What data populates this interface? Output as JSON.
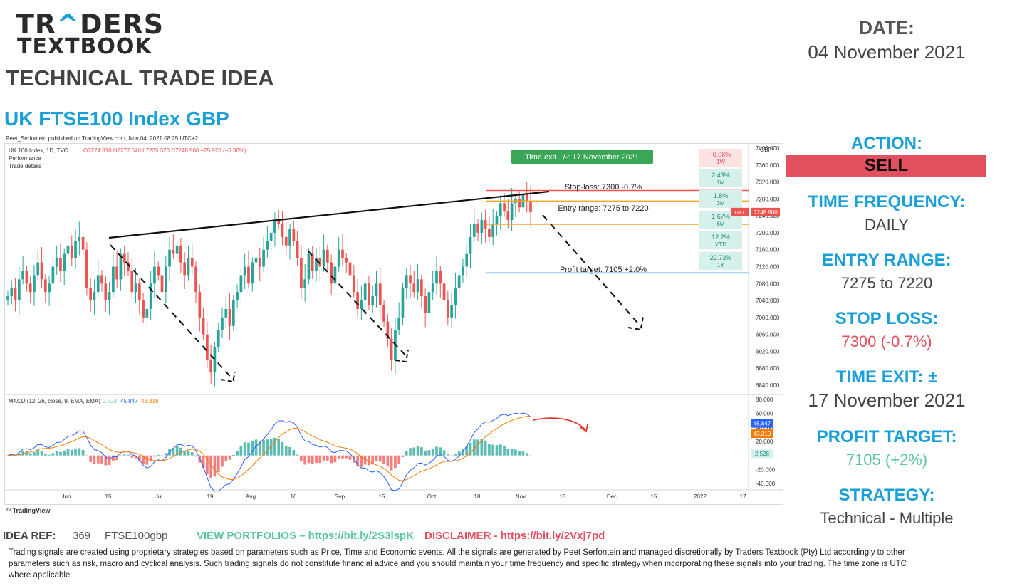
{
  "brand": {
    "logo_line1_a": "TR",
    "logo_line1_caret": "^",
    "logo_line1_b": "DERS",
    "logo_line2": "TEXTBOOK"
  },
  "header": {
    "title": "TECHNICAL TRADE IDEA",
    "chart_title": "UK FTSE100 Index GBP",
    "published": "Peet_Serfontein published on TradingView.com, Nov 04, 2021 08:25 UTC+2",
    "tradingview": "TradingView"
  },
  "side": {
    "date_label": "DATE:",
    "date_value": "04 November 2021",
    "action_label": "ACTION:",
    "action_value": "SELL",
    "freq_label": "TIME FREQUENCY:",
    "freq_value": "DAILY",
    "entry_label": "ENTRY RANGE:",
    "entry_value": "7275 to 7220",
    "stop_label": "STOP LOSS:",
    "stop_value": "7300 (-0.7%)",
    "exit_label": "TIME EXIT: ±",
    "exit_value": "17 November 2021",
    "target_label": "PROFIT TARGET:",
    "target_value": "7105 (+2%)",
    "strategy_label": "STRATEGY:",
    "strategy_value": "Technical - Multiple"
  },
  "footer": {
    "idea_ref": "IDEA REF:",
    "idea_num": "369",
    "idea_code": "FTSE100gbp",
    "portfolios": "VIEW PORTFOLIOS – https://bit.ly/2S3lspK",
    "disclaimer_link": "DISCLAIMER -  https://bit.ly/2Vxj7pd",
    "disclaimer_text": "Trading signals are created using proprietary strategies based on parameters such as Price, Time and Economic events.  All the signals are generated by Peet Serfontein and managed discretionally by Traders Textbook (Pty) Ltd accordingly to other parameters such as risk, macro and cyclical analysis. Such trading signals do not constitute financial advice and you should maintain your time frequency  and specific strategy when  incorporating these signals into your trading. The time zone  is UTC where  applicable."
  },
  "colors": {
    "accent": "#1aa0d8",
    "sell": "#e0505e",
    "up": "#26a69a",
    "down": "#ef5350",
    "target": "#5cc6a0"
  },
  "chart_data": {
    "type": "candlestick",
    "symbol_line": "UK 100 Index, 1D, TVC",
    "ohlc_line": "O7274.810 H7277.640 L7235.320 C7248.900 −25.920 (−0.36%)",
    "info_lines": [
      "Performance",
      "Trade details"
    ],
    "currency": "GBP",
    "price_ticks": [
      7400,
      7360,
      7320,
      7280,
      7240,
      7200,
      7160,
      7120,
      7080,
      7040,
      7000,
      6960,
      6920,
      6880,
      6840
    ],
    "x_ticks": [
      "Jun",
      "15",
      "Jul",
      "19",
      "Aug",
      "16",
      "Sep",
      "15",
      "Oct",
      "18",
      "Nov",
      "15",
      "Dec",
      "15",
      "2022",
      "17"
    ],
    "last_price_label": "UKX",
    "last_price": "7248.900",
    "close_series": [
      7050,
      7070,
      7040,
      7090,
      7110,
      7080,
      7060,
      7100,
      7130,
      7090,
      7060,
      7080,
      7120,
      7140,
      7110,
      7150,
      7170,
      7140,
      7180,
      7190,
      7160,
      7070,
      7040,
      7060,
      7100,
      7080,
      7040,
      7060,
      7120,
      7090,
      7150,
      7130,
      7110,
      7060,
      7080,
      7040,
      7000,
      7020,
      7080,
      7120,
      7100,
      7060,
      7120,
      7160,
      7150,
      7170,
      7130,
      7100,
      7140,
      7120,
      7060,
      7000,
      6960,
      6900,
      6870,
      6930,
      6970,
      7000,
      7020,
      6980,
      7040,
      7060,
      7100,
      7120,
      7080,
      7130,
      7140,
      7120,
      7160,
      7180,
      7200,
      7230,
      7220,
      7190,
      7170,
      7210,
      7180,
      7140,
      7070,
      7090,
      7150,
      7110,
      7140,
      7120,
      7160,
      7130,
      7080,
      7120,
      7160,
      7140,
      7130,
      7100,
      7060,
      7020,
      7040,
      7080,
      7030,
      7050,
      7080,
      7030,
      6990,
      6950,
      6900,
      6970,
      7000,
      7070,
      7100,
      7080,
      7060,
      7090,
      7050,
      7010,
      7060,
      7080,
      7110,
      7080,
      7040,
      7000,
      7030,
      7070,
      7100,
      7120,
      7150,
      7190,
      7220,
      7200,
      7230,
      7210,
      7190,
      7220,
      7240,
      7270,
      7250,
      7230,
      7270,
      7280,
      7260,
      7290,
      7274,
      7248.9
    ],
    "annotations": {
      "time_exit": "Time exit +/-: 17 November 2021",
      "stop_loss": "Stop-loss: 7300 -0.7%",
      "entry_range": "Entry range: 7275 to 7220",
      "profit_target": "Profit target: 7105 +2.0%",
      "stop_level": 7300,
      "entry_high": 7275,
      "entry_low": 7220,
      "target_level": 7105
    },
    "performance": [
      {
        "value": "-0.06%",
        "period": "1W",
        "positive": false
      },
      {
        "value": "2.43%",
        "period": "1M",
        "positive": true
      },
      {
        "value": "1.8%",
        "period": "3M",
        "positive": true
      },
      {
        "value": "1.67%",
        "period": "6M",
        "positive": true
      },
      {
        "value": "12.2%",
        "period": "YTD",
        "positive": true
      },
      {
        "value": "22.73%",
        "period": "1Y",
        "positive": true
      }
    ],
    "macd": {
      "legend_name": "MACD (12, 26, close, 9, EMA, EMA)",
      "hist_value": "2.528",
      "macd_value": "45.847",
      "signal_value": "43.319",
      "ticks": [
        80,
        60,
        40,
        20,
        0,
        -20,
        -40
      ],
      "tick_labels": [
        "80.000",
        "60.000",
        "40.000",
        "20.000",
        "0.000",
        "-20.000",
        "-40.000"
      ]
    }
  }
}
